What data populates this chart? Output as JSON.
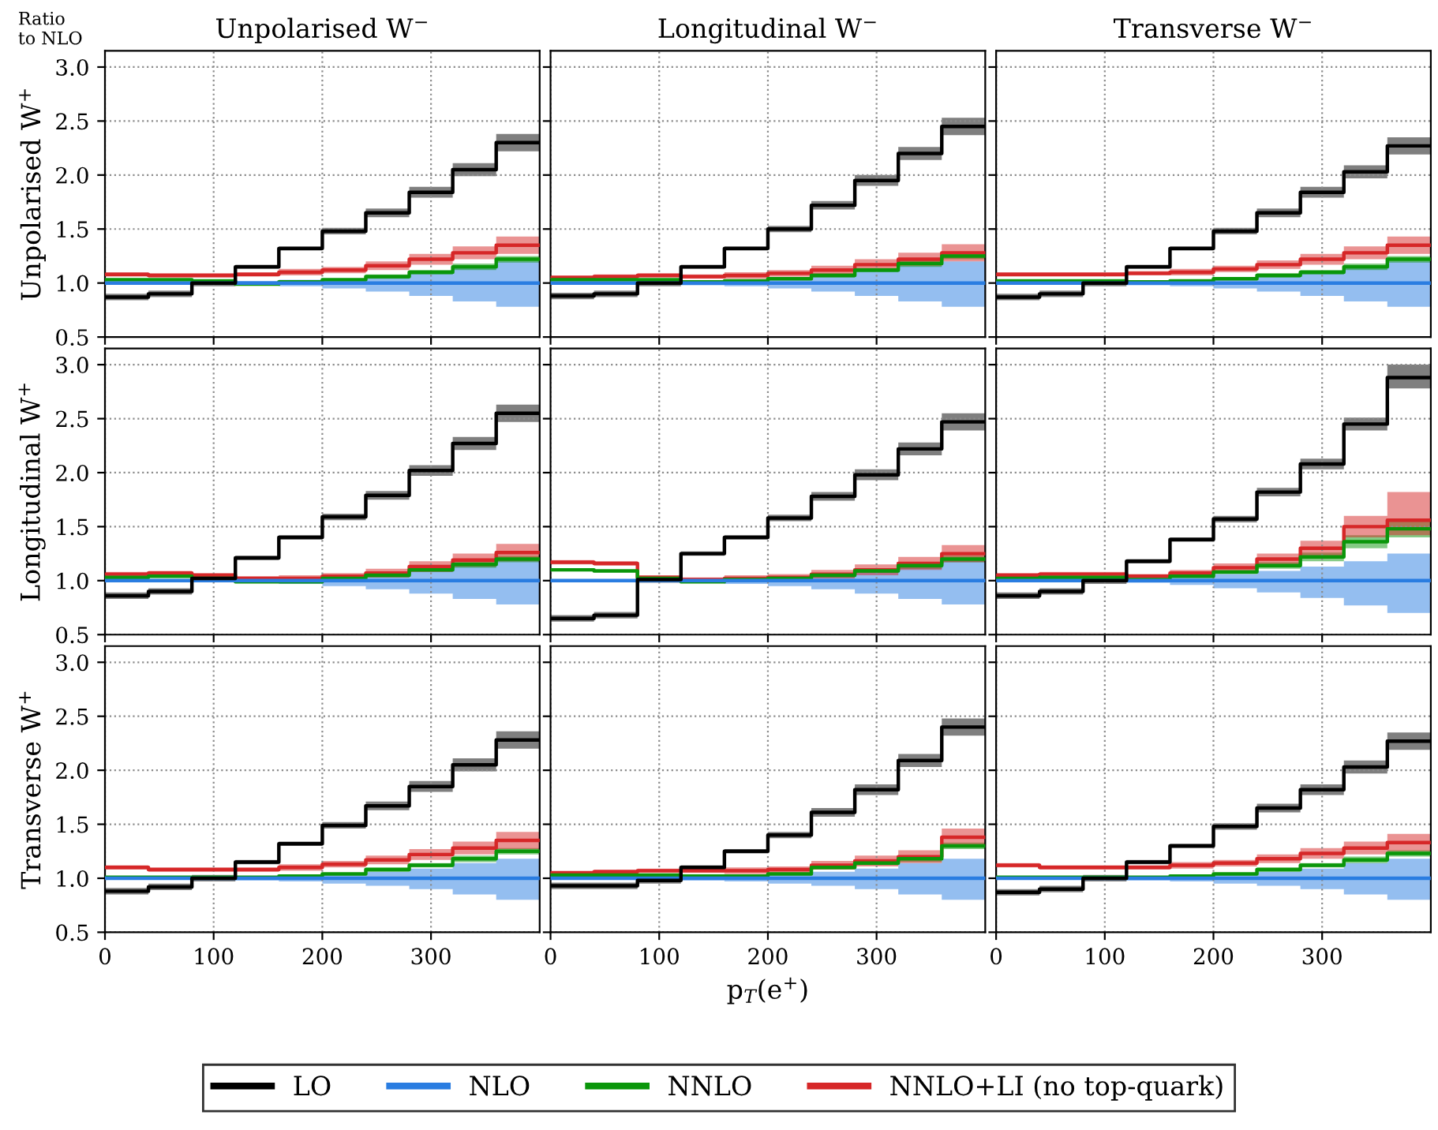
{
  "chart_data": [
    {
      "type": "step",
      "title": "Unpolarised W$^{−}$",
      "ylabel": "Unpolarised W$^{+}$",
      "annotations": [
        "Ratio\nto NLO"
      ],
      "legend": "bottom",
      "x": [
        0,
        40,
        80,
        120,
        160,
        200,
        240,
        280,
        320,
        360,
        400
      ],
      "xlim": [
        0,
        400
      ],
      "xticks": [
        0,
        100,
        200,
        300
      ],
      "ylim": [
        0.5,
        3.15
      ],
      "yticks": [
        0.5,
        {
          "value": 1,
          "label": "1.0"
        },
        1.5,
        {
          "value": 2,
          "label": "2.0"
        },
        2.5,
        {
          "value": 3,
          "label": "3.0"
        }
      ],
      "grid": true,
      "tick_labels": "y",
      "series": [
        {
          "name": "LO",
          "color": "#000000",
          "values": [
            0.87,
            0.9,
            1.0,
            1.15,
            1.32,
            1.48,
            1.65,
            1.84,
            2.05,
            2.3,
            2.3
          ],
          "lower": [
            0.84,
            0.87,
            0.97,
            1.13,
            1.3,
            1.45,
            1.61,
            1.79,
            1.99,
            2.22,
            2.22
          ],
          "upper": [
            0.9,
            0.93,
            1.03,
            1.17,
            1.34,
            1.51,
            1.69,
            1.89,
            2.11,
            2.38,
            2.38
          ]
        },
        {
          "name": "NLO",
          "color": "#2a7de1",
          "values": [
            1,
            1,
            1,
            1,
            1,
            1,
            1,
            1,
            1,
            1,
            1
          ],
          "lower": [
            0.99,
            0.99,
            0.99,
            0.98,
            0.97,
            0.95,
            0.92,
            0.88,
            0.83,
            0.78,
            0.78
          ],
          "upper": [
            1.01,
            1.01,
            1.01,
            1.02,
            1.03,
            1.04,
            1.06,
            1.1,
            1.14,
            1.2,
            1.2
          ]
        },
        {
          "name": "NNLO",
          "color": "#0a960a",
          "values": [
            1.03,
            1.03,
            1.02,
            0.99,
            1.01,
            1.03,
            1.06,
            1.1,
            1.15,
            1.22,
            1.22
          ],
          "lower": [
            1.02,
            1.02,
            1.01,
            0.98,
            1.0,
            1.02,
            1.04,
            1.08,
            1.12,
            1.19,
            1.19
          ],
          "upper": [
            1.04,
            1.04,
            1.03,
            1.0,
            1.02,
            1.04,
            1.08,
            1.12,
            1.18,
            1.25,
            1.25
          ]
        },
        {
          "name": "NNLO+LI (no top-quark)",
          "color": "#d62728",
          "values": [
            1.08,
            1.07,
            1.07,
            1.08,
            1.1,
            1.12,
            1.16,
            1.22,
            1.28,
            1.35,
            1.35
          ],
          "lower": [
            1.06,
            1.05,
            1.05,
            1.06,
            1.07,
            1.09,
            1.12,
            1.17,
            1.22,
            1.27,
            1.27
          ],
          "upper": [
            1.1,
            1.09,
            1.09,
            1.1,
            1.13,
            1.15,
            1.2,
            1.27,
            1.34,
            1.43,
            1.43
          ]
        }
      ]
    },
    {
      "type": "step",
      "title": "Longitudinal W$^{−}$",
      "x": [
        0,
        40,
        80,
        120,
        160,
        200,
        240,
        280,
        320,
        360,
        400
      ],
      "xlim": [
        0,
        400
      ],
      "xticks": [
        0,
        100,
        200,
        300
      ],
      "ylim": [
        0.5,
        3.15
      ],
      "yticks": [
        0.5,
        1,
        1.5,
        2,
        2.5,
        3
      ],
      "grid": true,
      "tick_labels": false,
      "series": [
        {
          "color": "#000000",
          "values": [
            0.88,
            0.9,
            1.0,
            1.15,
            1.32,
            1.5,
            1.72,
            1.95,
            2.2,
            2.45,
            2.45
          ],
          "lower": [
            0.85,
            0.87,
            0.97,
            1.13,
            1.3,
            1.47,
            1.68,
            1.9,
            2.14,
            2.37,
            2.37
          ],
          "upper": [
            0.91,
            0.93,
            1.03,
            1.17,
            1.34,
            1.53,
            1.76,
            2.0,
            2.26,
            2.53,
            2.53
          ]
        },
        {
          "color": "#2a7de1",
          "values": [
            1,
            1,
            1,
            1,
            1,
            1,
            1,
            1,
            1,
            1,
            1
          ],
          "lower": [
            0.99,
            0.99,
            0.99,
            0.98,
            0.97,
            0.95,
            0.92,
            0.88,
            0.83,
            0.78,
            0.78
          ],
          "upper": [
            1.01,
            1.01,
            1.01,
            1.02,
            1.03,
            1.05,
            1.08,
            1.12,
            1.16,
            1.2,
            1.2
          ]
        },
        {
          "color": "#0a960a",
          "values": [
            1.03,
            1.03,
            1.03,
            1.01,
            1.02,
            1.04,
            1.07,
            1.12,
            1.18,
            1.25,
            1.25
          ],
          "lower": [
            1.02,
            1.02,
            1.02,
            1.0,
            1.01,
            1.03,
            1.05,
            1.1,
            1.15,
            1.22,
            1.22
          ],
          "upper": [
            1.04,
            1.04,
            1.04,
            1.02,
            1.03,
            1.05,
            1.09,
            1.14,
            1.21,
            1.28,
            1.28
          ]
        },
        {
          "color": "#d62728",
          "values": [
            1.05,
            1.06,
            1.07,
            1.06,
            1.07,
            1.09,
            1.12,
            1.17,
            1.22,
            1.28,
            1.28
          ],
          "lower": [
            1.03,
            1.04,
            1.05,
            1.04,
            1.04,
            1.06,
            1.08,
            1.12,
            1.16,
            1.2,
            1.2
          ],
          "upper": [
            1.07,
            1.08,
            1.09,
            1.08,
            1.1,
            1.12,
            1.16,
            1.22,
            1.28,
            1.36,
            1.36
          ]
        }
      ]
    },
    {
      "type": "step",
      "title": "Transverse W$^{−}$",
      "x": [
        0,
        40,
        80,
        120,
        160,
        200,
        240,
        280,
        320,
        360,
        400
      ],
      "xlim": [
        0,
        400
      ],
      "xticks": [
        0,
        100,
        200,
        300
      ],
      "ylim": [
        0.5,
        3.15
      ],
      "yticks": [
        0.5,
        1,
        1.5,
        2,
        2.5,
        3
      ],
      "grid": true,
      "tick_labels": false,
      "series": [
        {
          "color": "#000000",
          "values": [
            0.87,
            0.9,
            1.0,
            1.15,
            1.32,
            1.48,
            1.65,
            1.84,
            2.03,
            2.27,
            2.27
          ],
          "lower": [
            0.84,
            0.87,
            0.97,
            1.13,
            1.3,
            1.45,
            1.61,
            1.79,
            1.97,
            2.19,
            2.19
          ],
          "upper": [
            0.9,
            0.93,
            1.03,
            1.17,
            1.34,
            1.51,
            1.69,
            1.89,
            2.09,
            2.35,
            2.35
          ]
        },
        {
          "color": "#2a7de1",
          "values": [
            1,
            1,
            1,
            1,
            1,
            1,
            1,
            1,
            1,
            1,
            1
          ],
          "lower": [
            0.99,
            0.99,
            0.99,
            0.98,
            0.97,
            0.95,
            0.92,
            0.88,
            0.83,
            0.78,
            0.78
          ],
          "upper": [
            1.01,
            1.01,
            1.01,
            1.02,
            1.03,
            1.04,
            1.06,
            1.1,
            1.14,
            1.2,
            1.2
          ]
        },
        {
          "color": "#0a960a",
          "values": [
            1.02,
            1.02,
            1.02,
            1.01,
            1.02,
            1.04,
            1.07,
            1.1,
            1.15,
            1.22,
            1.22
          ],
          "lower": [
            1.01,
            1.01,
            1.01,
            1.0,
            1.01,
            1.03,
            1.05,
            1.08,
            1.12,
            1.19,
            1.19
          ],
          "upper": [
            1.03,
            1.03,
            1.03,
            1.02,
            1.03,
            1.05,
            1.09,
            1.12,
            1.18,
            1.25,
            1.25
          ]
        },
        {
          "color": "#d62728",
          "values": [
            1.08,
            1.08,
            1.08,
            1.09,
            1.1,
            1.13,
            1.17,
            1.22,
            1.28,
            1.35,
            1.35
          ],
          "lower": [
            1.06,
            1.06,
            1.06,
            1.07,
            1.07,
            1.1,
            1.13,
            1.17,
            1.22,
            1.27,
            1.27
          ],
          "upper": [
            1.1,
            1.1,
            1.1,
            1.11,
            1.13,
            1.16,
            1.21,
            1.27,
            1.34,
            1.43,
            1.43
          ]
        }
      ]
    },
    {
      "type": "step",
      "ylabel": "Longitudinal W$^{+}$",
      "x": [
        0,
        40,
        80,
        120,
        160,
        200,
        240,
        280,
        320,
        360,
        400
      ],
      "xlim": [
        0,
        400
      ],
      "xticks": [
        0,
        100,
        200,
        300
      ],
      "ylim": [
        0.5,
        3.15
      ],
      "yticks": [
        0.5,
        {
          "value": 1,
          "label": "1.0"
        },
        1.5,
        {
          "value": 2,
          "label": "2.0"
        },
        2.5,
        {
          "value": 3,
          "label": "3.0"
        }
      ],
      "grid": true,
      "tick_labels": "y",
      "series": [
        {
          "color": "#000000",
          "values": [
            0.86,
            0.9,
            1.02,
            1.21,
            1.4,
            1.59,
            1.79,
            2.02,
            2.27,
            2.55,
            2.55
          ],
          "lower": [
            0.83,
            0.87,
            0.99,
            1.19,
            1.38,
            1.56,
            1.75,
            1.97,
            2.21,
            2.47,
            2.47
          ],
          "upper": [
            0.89,
            0.93,
            1.05,
            1.23,
            1.42,
            1.62,
            1.83,
            2.07,
            2.33,
            2.63,
            2.63
          ]
        },
        {
          "color": "#2a7de1",
          "values": [
            1,
            1,
            1,
            1,
            1,
            1,
            1,
            1,
            1,
            1,
            1
          ],
          "lower": [
            0.99,
            0.99,
            0.99,
            0.98,
            0.97,
            0.95,
            0.92,
            0.88,
            0.83,
            0.78,
            0.78
          ],
          "upper": [
            1.01,
            1.01,
            1.01,
            1.02,
            1.03,
            1.04,
            1.06,
            1.1,
            1.14,
            1.2,
            1.2
          ]
        },
        {
          "color": "#0a960a",
          "values": [
            1.03,
            1.04,
            1.02,
            0.99,
            0.99,
            1.02,
            1.05,
            1.1,
            1.15,
            1.2,
            1.2
          ],
          "lower": [
            1.02,
            1.03,
            1.01,
            0.98,
            0.98,
            1.01,
            1.03,
            1.08,
            1.12,
            1.17,
            1.17
          ],
          "upper": [
            1.04,
            1.05,
            1.03,
            1.0,
            1.0,
            1.03,
            1.07,
            1.12,
            1.18,
            1.23,
            1.23
          ]
        },
        {
          "color": "#d62728",
          "values": [
            1.06,
            1.07,
            1.05,
            1.02,
            1.02,
            1.04,
            1.07,
            1.13,
            1.19,
            1.26,
            1.26
          ],
          "lower": [
            1.04,
            1.05,
            1.03,
            1.0,
            0.99,
            1.01,
            1.03,
            1.08,
            1.13,
            1.18,
            1.18
          ],
          "upper": [
            1.08,
            1.09,
            1.07,
            1.04,
            1.05,
            1.07,
            1.11,
            1.18,
            1.25,
            1.34,
            1.34
          ]
        }
      ]
    },
    {
      "type": "step",
      "x": [
        0,
        40,
        80,
        120,
        160,
        200,
        240,
        280,
        320,
        360,
        400
      ],
      "xlim": [
        0,
        400
      ],
      "xticks": [
        0,
        100,
        200,
        300
      ],
      "ylim": [
        0.5,
        3.15
      ],
      "yticks": [
        0.5,
        1,
        1.5,
        2,
        2.5,
        3
      ],
      "grid": true,
      "tick_labels": false,
      "series": [
        {
          "color": "#000000",
          "values": [
            0.65,
            0.68,
            1.01,
            1.25,
            1.4,
            1.58,
            1.78,
            1.98,
            2.22,
            2.47,
            2.47
          ],
          "lower": [
            0.62,
            0.65,
            0.98,
            1.23,
            1.38,
            1.55,
            1.74,
            1.93,
            2.16,
            2.39,
            2.39
          ],
          "upper": [
            0.68,
            0.71,
            1.04,
            1.27,
            1.42,
            1.61,
            1.82,
            2.03,
            2.28,
            2.55,
            2.55
          ]
        },
        {
          "color": "#2a7de1",
          "values": [
            1,
            1,
            1,
            1,
            1,
            1,
            1,
            1,
            1,
            1,
            1
          ],
          "lower": [
            0.99,
            0.99,
            0.99,
            0.98,
            0.97,
            0.95,
            0.92,
            0.88,
            0.83,
            0.78,
            0.78
          ],
          "upper": [
            1.01,
            1.01,
            1.01,
            1.02,
            1.03,
            1.04,
            1.06,
            1.1,
            1.14,
            1.2,
            1.2
          ]
        },
        {
          "color": "#0a960a",
          "values": [
            1.1,
            1.09,
            1.02,
            0.99,
            1.01,
            1.02,
            1.05,
            1.09,
            1.14,
            1.2,
            1.2
          ],
          "lower": [
            1.09,
            1.08,
            1.01,
            0.98,
            1.0,
            1.01,
            1.03,
            1.07,
            1.11,
            1.17,
            1.17
          ],
          "upper": [
            1.11,
            1.1,
            1.03,
            1.0,
            1.02,
            1.03,
            1.07,
            1.11,
            1.17,
            1.23,
            1.23
          ]
        },
        {
          "color": "#d62728",
          "values": [
            1.17,
            1.16,
            1.03,
            1.01,
            1.02,
            1.03,
            1.06,
            1.1,
            1.16,
            1.25,
            1.25
          ],
          "lower": [
            1.15,
            1.14,
            1.01,
            0.99,
            0.99,
            1.0,
            1.02,
            1.05,
            1.1,
            1.17,
            1.17
          ],
          "upper": [
            1.19,
            1.18,
            1.05,
            1.03,
            1.05,
            1.06,
            1.1,
            1.15,
            1.22,
            1.33,
            1.33
          ]
        }
      ]
    },
    {
      "type": "step",
      "x": [
        0,
        40,
        80,
        120,
        160,
        200,
        240,
        280,
        320,
        360,
        400
      ],
      "xlim": [
        0,
        400
      ],
      "xticks": [
        0,
        100,
        200,
        300
      ],
      "ylim": [
        0.5,
        3.15
      ],
      "yticks": [
        0.5,
        1,
        1.5,
        2,
        2.5,
        3
      ],
      "grid": true,
      "tick_labels": false,
      "series": [
        {
          "color": "#000000",
          "values": [
            0.86,
            0.9,
            1.0,
            1.18,
            1.38,
            1.57,
            1.82,
            2.08,
            2.45,
            2.88,
            2.88
          ],
          "lower": [
            0.83,
            0.87,
            0.97,
            1.16,
            1.36,
            1.54,
            1.78,
            2.03,
            2.39,
            2.78,
            2.78
          ],
          "upper": [
            0.89,
            0.93,
            1.03,
            1.2,
            1.4,
            1.6,
            1.86,
            2.13,
            2.51,
            3.0,
            3.0
          ]
        },
        {
          "color": "#2a7de1",
          "values": [
            1,
            1,
            1,
            1,
            1,
            1,
            1,
            1,
            1,
            1,
            1
          ],
          "lower": [
            0.99,
            0.99,
            0.99,
            0.98,
            0.96,
            0.93,
            0.89,
            0.84,
            0.77,
            0.7,
            0.7
          ],
          "upper": [
            1.01,
            1.01,
            1.01,
            1.02,
            1.04,
            1.06,
            1.09,
            1.13,
            1.18,
            1.25,
            1.25
          ]
        },
        {
          "color": "#0a960a",
          "values": [
            1.02,
            1.03,
            1.03,
            1.01,
            1.04,
            1.08,
            1.14,
            1.22,
            1.36,
            1.48,
            1.48
          ],
          "lower": [
            1.01,
            1.02,
            1.02,
            1.0,
            1.03,
            1.06,
            1.11,
            1.18,
            1.3,
            1.4,
            1.4
          ],
          "upper": [
            1.03,
            1.04,
            1.04,
            1.02,
            1.05,
            1.1,
            1.17,
            1.26,
            1.42,
            1.56,
            1.56
          ]
        },
        {
          "color": "#d62728",
          "values": [
            1.05,
            1.06,
            1.06,
            1.04,
            1.07,
            1.12,
            1.2,
            1.3,
            1.5,
            1.56,
            1.56
          ],
          "lower": [
            1.03,
            1.04,
            1.04,
            1.02,
            1.04,
            1.08,
            1.15,
            1.23,
            1.4,
            1.42,
            1.42
          ],
          "upper": [
            1.07,
            1.08,
            1.08,
            1.06,
            1.1,
            1.16,
            1.25,
            1.37,
            1.6,
            1.82,
            1.82
          ]
        }
      ]
    },
    {
      "type": "step",
      "ylabel": "Transverse W$^{+}$",
      "x": [
        0,
        40,
        80,
        120,
        160,
        200,
        240,
        280,
        320,
        360,
        400
      ],
      "xlim": [
        0,
        400
      ],
      "xticks": [
        0,
        100,
        200,
        300
      ],
      "ylim": [
        0.5,
        3.15
      ],
      "yticks": [
        0.5,
        {
          "value": 1,
          "label": "1.0"
        },
        1.5,
        {
          "value": 2,
          "label": "2.0"
        },
        2.5,
        {
          "value": 3,
          "label": "3.0"
        }
      ],
      "grid": true,
      "series": [
        {
          "color": "#000000",
          "values": [
            0.88,
            0.92,
            1.0,
            1.15,
            1.32,
            1.49,
            1.67,
            1.85,
            2.05,
            2.28,
            2.28
          ],
          "lower": [
            0.85,
            0.89,
            0.97,
            1.13,
            1.3,
            1.46,
            1.63,
            1.8,
            1.99,
            2.2,
            2.2
          ],
          "upper": [
            0.91,
            0.95,
            1.03,
            1.17,
            1.34,
            1.52,
            1.71,
            1.9,
            2.11,
            2.36,
            2.36
          ]
        },
        {
          "color": "#2a7de1",
          "values": [
            1,
            1,
            1,
            1,
            1,
            1,
            1,
            1,
            1,
            1,
            1
          ],
          "lower": [
            0.99,
            0.99,
            0.99,
            0.98,
            0.97,
            0.95,
            0.93,
            0.9,
            0.85,
            0.8,
            0.8
          ],
          "upper": [
            1.01,
            1.01,
            1.01,
            1.02,
            1.03,
            1.04,
            1.06,
            1.09,
            1.14,
            1.18,
            1.18
          ]
        },
        {
          "color": "#0a960a",
          "values": [
            1.01,
            1.01,
            1.01,
            1.01,
            1.02,
            1.04,
            1.08,
            1.12,
            1.18,
            1.25,
            1.25
          ],
          "lower": [
            1.0,
            1.0,
            1.0,
            1.0,
            1.01,
            1.03,
            1.06,
            1.1,
            1.15,
            1.22,
            1.22
          ],
          "upper": [
            1.02,
            1.02,
            1.02,
            1.02,
            1.03,
            1.05,
            1.1,
            1.14,
            1.21,
            1.28,
            1.28
          ]
        },
        {
          "color": "#d62728",
          "values": [
            1.1,
            1.08,
            1.08,
            1.08,
            1.1,
            1.13,
            1.17,
            1.22,
            1.28,
            1.35,
            1.35
          ],
          "lower": [
            1.08,
            1.06,
            1.06,
            1.06,
            1.07,
            1.1,
            1.13,
            1.17,
            1.22,
            1.27,
            1.27
          ],
          "upper": [
            1.12,
            1.1,
            1.1,
            1.1,
            1.13,
            1.16,
            1.21,
            1.27,
            1.34,
            1.43,
            1.43
          ]
        }
      ]
    },
    {
      "type": "step",
      "xlabel": "p$_{T}$(e$^{+}$)",
      "x": [
        0,
        40,
        80,
        120,
        160,
        200,
        240,
        280,
        320,
        360,
        400
      ],
      "xlim": [
        0,
        400
      ],
      "xticks": [
        0,
        100,
        200,
        300
      ],
      "ylim": [
        0.5,
        3.15
      ],
      "yticks": [
        0.5,
        1,
        1.5,
        2,
        2.5,
        3
      ],
      "grid": true,
      "tick_labels": "x",
      "series": [
        {
          "color": "#000000",
          "values": [
            0.93,
            0.93,
            0.98,
            1.1,
            1.25,
            1.4,
            1.61,
            1.82,
            2.09,
            2.4,
            2.4
          ],
          "lower": [
            0.9,
            0.9,
            0.95,
            1.08,
            1.23,
            1.37,
            1.57,
            1.77,
            2.03,
            2.32,
            2.32
          ],
          "upper": [
            0.96,
            0.96,
            1.01,
            1.12,
            1.27,
            1.43,
            1.65,
            1.87,
            2.15,
            2.48,
            2.48
          ]
        },
        {
          "color": "#2a7de1",
          "values": [
            1,
            1,
            1,
            1,
            1,
            1,
            1,
            1,
            1,
            1,
            1
          ],
          "lower": [
            0.99,
            0.99,
            0.99,
            0.98,
            0.97,
            0.95,
            0.93,
            0.9,
            0.85,
            0.8,
            0.8
          ],
          "upper": [
            1.01,
            1.01,
            1.01,
            1.02,
            1.03,
            1.04,
            1.06,
            1.09,
            1.14,
            1.18,
            1.18
          ]
        },
        {
          "color": "#0a960a",
          "values": [
            1.03,
            1.03,
            1.03,
            1.02,
            1.02,
            1.04,
            1.1,
            1.14,
            1.18,
            1.3,
            1.3
          ],
          "lower": [
            1.02,
            1.02,
            1.02,
            1.01,
            1.01,
            1.03,
            1.08,
            1.12,
            1.15,
            1.27,
            1.27
          ],
          "upper": [
            1.04,
            1.04,
            1.04,
            1.03,
            1.03,
            1.05,
            1.12,
            1.16,
            1.21,
            1.33,
            1.33
          ]
        },
        {
          "color": "#d62728",
          "values": [
            1.05,
            1.06,
            1.07,
            1.07,
            1.07,
            1.08,
            1.12,
            1.16,
            1.2,
            1.38,
            1.38
          ],
          "lower": [
            1.03,
            1.04,
            1.05,
            1.05,
            1.04,
            1.05,
            1.08,
            1.11,
            1.14,
            1.3,
            1.3
          ],
          "upper": [
            1.07,
            1.08,
            1.09,
            1.09,
            1.1,
            1.11,
            1.16,
            1.21,
            1.26,
            1.46,
            1.46
          ]
        }
      ]
    },
    {
      "type": "step",
      "x": [
        0,
        40,
        80,
        120,
        160,
        200,
        240,
        280,
        320,
        360,
        400
      ],
      "xlim": [
        0,
        400
      ],
      "xticks": [
        0,
        100,
        200,
        300
      ],
      "ylim": [
        0.5,
        3.15
      ],
      "yticks": [
        0.5,
        1,
        1.5,
        2,
        2.5,
        3
      ],
      "grid": true,
      "tick_labels": "x",
      "series": [
        {
          "color": "#000000",
          "values": [
            0.87,
            0.9,
            1.0,
            1.15,
            1.3,
            1.48,
            1.65,
            1.82,
            2.03,
            2.27,
            2.27
          ],
          "lower": [
            0.84,
            0.87,
            0.97,
            1.13,
            1.28,
            1.45,
            1.61,
            1.77,
            1.97,
            2.19,
            2.19
          ],
          "upper": [
            0.9,
            0.93,
            1.03,
            1.17,
            1.32,
            1.51,
            1.69,
            1.87,
            2.09,
            2.35,
            2.35
          ]
        },
        {
          "color": "#2a7de1",
          "values": [
            1,
            1,
            1,
            1,
            1,
            1,
            1,
            1,
            1,
            1,
            1
          ],
          "lower": [
            0.99,
            0.99,
            0.99,
            0.98,
            0.97,
            0.95,
            0.93,
            0.9,
            0.85,
            0.8,
            0.8
          ],
          "upper": [
            1.01,
            1.01,
            1.01,
            1.02,
            1.03,
            1.04,
            1.06,
            1.09,
            1.14,
            1.18,
            1.18
          ]
        },
        {
          "color": "#0a960a",
          "values": [
            1.01,
            1.01,
            1.01,
            1.01,
            1.02,
            1.04,
            1.08,
            1.12,
            1.17,
            1.23,
            1.23
          ],
          "lower": [
            1.0,
            1.0,
            1.0,
            1.0,
            1.01,
            1.03,
            1.06,
            1.1,
            1.14,
            1.2,
            1.2
          ],
          "upper": [
            1.02,
            1.02,
            1.02,
            1.02,
            1.03,
            1.05,
            1.1,
            1.14,
            1.2,
            1.26,
            1.26
          ]
        },
        {
          "color": "#d62728",
          "values": [
            1.12,
            1.1,
            1.1,
            1.1,
            1.12,
            1.14,
            1.18,
            1.23,
            1.28,
            1.33,
            1.33
          ],
          "lower": [
            1.1,
            1.08,
            1.08,
            1.08,
            1.09,
            1.11,
            1.14,
            1.18,
            1.22,
            1.25,
            1.25
          ],
          "upper": [
            1.14,
            1.12,
            1.12,
            1.12,
            1.15,
            1.17,
            1.22,
            1.28,
            1.34,
            1.41,
            1.41
          ]
        }
      ]
    }
  ]
}
